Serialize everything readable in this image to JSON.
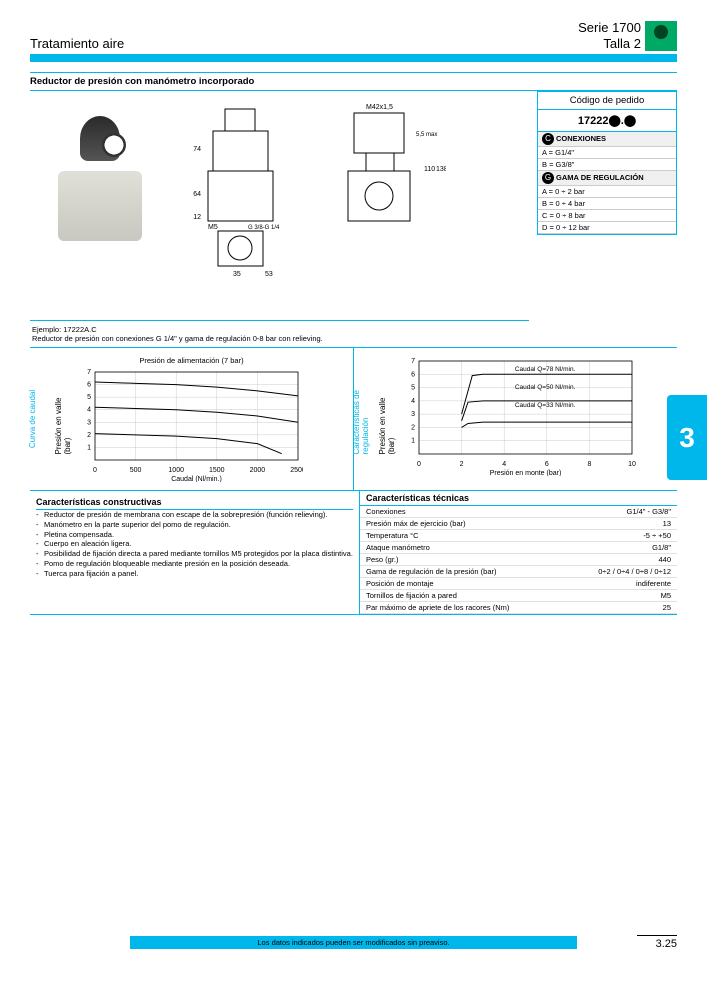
{
  "header": {
    "left": "Tratamiento aire",
    "right_line1": "Serie 1700",
    "right_line2": "Talla 2"
  },
  "title": "Reductor de presión con manómetro incorporado",
  "order": {
    "heading": "Código de pedido",
    "code": "17222⬤.⬤",
    "section1_label": "CONEXIONES",
    "conn": [
      "A = G1/4\"",
      "B = G3/8\""
    ],
    "section2_label": "GAMA DE REGULACIÓN",
    "range": [
      "A = 0 ÷ 2 bar",
      "B = 0 ÷ 4 bar",
      "C = 0 ÷ 8 bar",
      "D = 0 ÷ 12 bar"
    ]
  },
  "dims": {
    "d1": "M42x1,5",
    "d2": "74",
    "d3": "64",
    "d4": "12",
    "d5": "M5",
    "d6": "G 3/8-G 1/4",
    "d7": "35",
    "d8": "53",
    "d9": "5,5 max",
    "d10": "110",
    "d11": "138"
  },
  "example": {
    "line1": "Ejemplo: 17222A.C",
    "line2": "Reductor de presión con conexiones G 1/4\" y gama de regulación 0-8 bar con relieving."
  },
  "chart1": {
    "title": "Presión de alimentación (7 bar)",
    "vlabel1": "Curva de caudal",
    "vlabel2": "Presión en valle  (bar)",
    "xlabel": "Caudal  (Nl/min.)",
    "xlim": [
      0,
      2500
    ],
    "ylim": [
      0,
      7
    ],
    "xticks": [
      0,
      500,
      1000,
      1500,
      2000,
      2500
    ],
    "yticks": [
      1,
      2,
      3,
      4,
      5,
      6,
      7
    ],
    "series": [
      {
        "points": [
          [
            0,
            6.2
          ],
          [
            500,
            6.1
          ],
          [
            1000,
            6.0
          ],
          [
            1500,
            5.8
          ],
          [
            2000,
            5.5
          ],
          [
            2500,
            5.1
          ]
        ],
        "color": "#000"
      },
      {
        "points": [
          [
            0,
            4.2
          ],
          [
            500,
            4.1
          ],
          [
            1000,
            4.0
          ],
          [
            1500,
            3.8
          ],
          [
            2000,
            3.5
          ],
          [
            2500,
            3.0
          ]
        ],
        "color": "#000"
      },
      {
        "points": [
          [
            0,
            2.1
          ],
          [
            500,
            2.0
          ],
          [
            1000,
            1.9
          ],
          [
            1500,
            1.7
          ],
          [
            2000,
            1.3
          ],
          [
            2300,
            0.5
          ]
        ],
        "color": "#000"
      }
    ]
  },
  "chart2": {
    "vlabel1": "Características de regulación",
    "vlabel2": "Presión en valle (bar)",
    "xlabel": "Presión en monte  (bar)",
    "xlim": [
      0,
      10
    ],
    "ylim": [
      0,
      7
    ],
    "xticks": [
      0,
      2,
      4,
      6,
      8,
      10
    ],
    "yticks": [
      1,
      2,
      3,
      4,
      5,
      6,
      7
    ],
    "labels": [
      "Caudal Q=78 Nl/min.",
      "Caudal Q=50 Nl/min.",
      "Caudal Q=33 Nl/min."
    ],
    "series": [
      {
        "points": [
          [
            2,
            3.0
          ],
          [
            2.5,
            5.9
          ],
          [
            3,
            6.0
          ],
          [
            10,
            6.0
          ]
        ],
        "color": "#000"
      },
      {
        "points": [
          [
            2,
            2.5
          ],
          [
            2.3,
            3.9
          ],
          [
            3,
            4.0
          ],
          [
            10,
            4.0
          ]
        ],
        "color": "#000"
      },
      {
        "points": [
          [
            2,
            2.0
          ],
          [
            2.3,
            2.3
          ],
          [
            3,
            2.4
          ],
          [
            10,
            2.4
          ]
        ],
        "color": "#000"
      }
    ]
  },
  "constructive": {
    "heading": "Características constructivas",
    "items": [
      "Reductor de presión de membrana con escape de la sobrepresión (función relieving).",
      "Manómetro en la parte superior del pomo de regulación.",
      "Pletina compensada.",
      "Cuerpo en aleación ligera.",
      "Posibilidad de fijación directa a pared mediante tornillos M5 protegidos por la placa distintiva.",
      "Pomo de regulación bloqueable mediante presión en la posición deseada.",
      "Tuerca para fijación a panel."
    ]
  },
  "technical": {
    "heading": "Características técnicas",
    "rows": [
      [
        "Conexiones",
        "G1/4\" - G3/8\""
      ],
      [
        "Presión máx de ejercicio (bar)",
        "13"
      ],
      [
        "Temperatura °C",
        "-5 ÷ +50"
      ],
      [
        "Ataque manómetro",
        "G1/8\""
      ],
      [
        "Peso (gr.)",
        "440"
      ],
      [
        "Gama de regulación de la presión (bar)",
        "0÷2 / 0÷4 / 0÷8 / 0÷12"
      ],
      [
        "Posición de montaje",
        "indiferente"
      ],
      [
        "Tornillos de fijación a pared",
        "M5"
      ],
      [
        "Par máximo de apriete de los racores (Nm)",
        "25"
      ]
    ]
  },
  "section_number": "3",
  "footer": {
    "text": "Los datos indicados pueden ser modificados sin preaviso.",
    "page": "3.25"
  }
}
